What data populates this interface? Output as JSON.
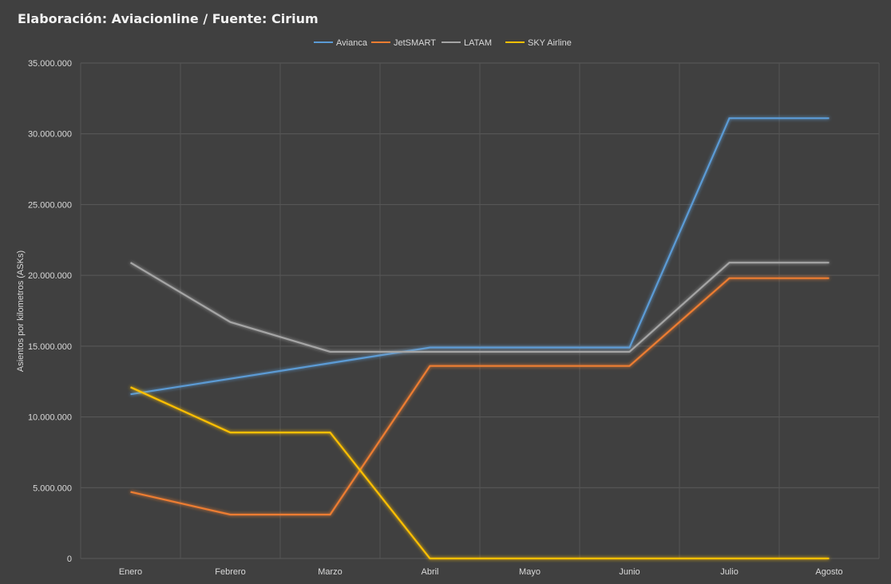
{
  "chart_data": {
    "type": "line",
    "title": "Elaboración: Aviacionline / Fuente: Cirium",
    "xlabel": "",
    "ylabel": "Asientos por kilometros (ASKs)",
    "categories": [
      "Enero",
      "Febrero",
      "Marzo",
      "Abril",
      "Mayo",
      "Junio",
      "Julio",
      "Agosto"
    ],
    "ylim": [
      0,
      35000000
    ],
    "yticks": [
      0,
      5000000,
      10000000,
      15000000,
      20000000,
      25000000,
      30000000,
      35000000
    ],
    "ytick_labels": [
      "0",
      "5.000.000",
      "10.000.000",
      "15.000.000",
      "20.000.000",
      "25.000.000",
      "30.000.000",
      "35.000.000"
    ],
    "grid": true,
    "legend_position": "top",
    "series": [
      {
        "name": "Avianca",
        "color": "#5b9bd5",
        "values": [
          11600000,
          12700000,
          13800000,
          14900000,
          14900000,
          14900000,
          31100000,
          31100000
        ]
      },
      {
        "name": "JetSMART",
        "color": "#ed7d31",
        "values": [
          4700000,
          3100000,
          3100000,
          13600000,
          13600000,
          13600000,
          19800000,
          19800000
        ]
      },
      {
        "name": "LATAM",
        "color": "#a5a5a5",
        "values": [
          20900000,
          16700000,
          14600000,
          14600000,
          14600000,
          14600000,
          20900000,
          20900000
        ]
      },
      {
        "name": "SKY Airline",
        "color": "#ffc000",
        "values": [
          12100000,
          8900000,
          8900000,
          0,
          0,
          0,
          0,
          0
        ]
      }
    ]
  }
}
